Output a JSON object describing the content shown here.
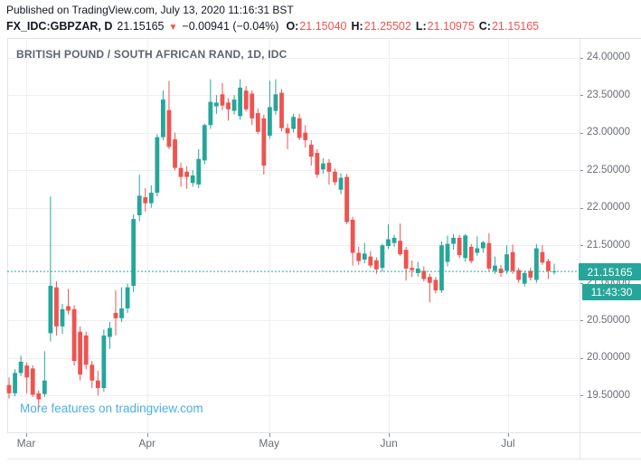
{
  "header": {
    "published": "Published on TradingView.com, July 13, 2020 11:16:31 BST",
    "symbol": "FX_IDC:GBPZAR, D",
    "last_price": "21.15165",
    "direction_icon": "▼",
    "change": "−0.00941 (−0.04%)",
    "ohlc": {
      "o_label": "O:",
      "o": "21.15040",
      "h_label": "H:",
      "h": "21.25502",
      "l_label": "L:",
      "l": "21.10975",
      "c_label": "C:",
      "c": "21.15165"
    }
  },
  "chart": {
    "title": "BRITISH POUND / SOUTH AFRICAN RAND, 1D, IDC",
    "watermark": "More features on tradingview.com",
    "price_label": "21.15165",
    "countdown": "11:43:30",
    "colors": {
      "up": "#26a69a",
      "down": "#ef5350",
      "accent": "#26a69a",
      "link": "#4bafe8",
      "value_red": "#ef5350",
      "text": "#131722",
      "axis_text": "#6a6d77",
      "tick": "#8a8e99",
      "grid": "#edeff5",
      "border": "#e0e3eb",
      "title_gray": "#5d6370",
      "badge_bg": "#26a69a"
    }
  },
  "chart_data": {
    "type": "candlestick",
    "title": "BRITISH POUND / SOUTH AFRICAN RAND, 1D, IDC",
    "symbol": "FX_IDC:GBPZAR",
    "interval": "1D",
    "current_price": 21.15165,
    "countdown": "11:43:30",
    "ylim": [
      19.01,
      24.26
    ],
    "grid": true,
    "price_gridlines": [
      24.0,
      23.5,
      23.0,
      22.5,
      22.0,
      21.5,
      21.0,
      20.5,
      20.0,
      19.5
    ],
    "ylabels": [
      "24.00000",
      "23.50000",
      "23.00000",
      "22.50000",
      "22.00000",
      "21.50000",
      "21.00000",
      "20.50000",
      "20.00000",
      "19.50000"
    ],
    "x_ticks": [
      {
        "label": "Mar",
        "index": 2.9
      },
      {
        "label": "Apr",
        "index": 23.3
      },
      {
        "label": "May",
        "index": 43.9
      },
      {
        "label": "Jun",
        "index": 64.1
      },
      {
        "label": "Jul",
        "index": 84.2
      }
    ],
    "candles_format": [
      "open",
      "high",
      "low",
      "close"
    ],
    "candles": [
      [
        19.64,
        19.74,
        19.46,
        19.53
      ],
      [
        19.53,
        19.85,
        19.49,
        19.8
      ],
      [
        19.8,
        20.03,
        19.76,
        19.95
      ],
      [
        19.9,
        19.94,
        19.53,
        19.74
      ],
      [
        19.86,
        19.9,
        19.48,
        19.51
      ],
      [
        19.53,
        19.57,
        19.33,
        19.45
      ],
      [
        19.52,
        20.09,
        19.48,
        19.7
      ],
      [
        20.33,
        22.15,
        20.22,
        20.96
      ],
      [
        20.94,
        21.02,
        20.3,
        20.42
      ],
      [
        20.42,
        20.72,
        20.32,
        20.65
      ],
      [
        20.69,
        20.92,
        20.58,
        20.63
      ],
      [
        20.65,
        20.7,
        19.9,
        19.96
      ],
      [
        20.35,
        20.42,
        19.7,
        19.78
      ],
      [
        20.3,
        20.35,
        19.85,
        19.91
      ],
      [
        19.91,
        19.96,
        19.6,
        19.7
      ],
      [
        19.7,
        19.83,
        19.5,
        19.6
      ],
      [
        19.6,
        20.38,
        19.55,
        20.3
      ],
      [
        20.28,
        20.48,
        20.12,
        20.4
      ],
      [
        20.6,
        20.9,
        20.3,
        20.53
      ],
      [
        20.53,
        20.94,
        20.48,
        20.66
      ],
      [
        20.66,
        20.99,
        20.6,
        20.94
      ],
      [
        20.96,
        21.91,
        20.88,
        21.85
      ],
      [
        21.9,
        22.44,
        21.82,
        22.16
      ],
      [
        22.14,
        22.26,
        21.95,
        22.06
      ],
      [
        22.06,
        22.3,
        22.0,
        22.2
      ],
      [
        22.2,
        22.98,
        22.15,
        22.94
      ],
      [
        22.94,
        23.56,
        22.9,
        23.44
      ],
      [
        23.3,
        23.69,
        22.78,
        22.81
      ],
      [
        22.91,
        23.0,
        22.5,
        22.53
      ],
      [
        22.53,
        22.6,
        22.28,
        22.41
      ],
      [
        22.48,
        22.55,
        22.25,
        22.41
      ],
      [
        22.33,
        22.5,
        22.28,
        22.43
      ],
      [
        22.31,
        22.78,
        22.26,
        22.65
      ],
      [
        22.63,
        23.12,
        22.58,
        23.1
      ],
      [
        23.1,
        23.71,
        23.05,
        23.41
      ],
      [
        23.35,
        23.5,
        23.25,
        23.4
      ],
      [
        23.51,
        23.66,
        23.3,
        23.36
      ],
      [
        23.4,
        23.46,
        23.16,
        23.31
      ],
      [
        23.29,
        23.5,
        23.24,
        23.44
      ],
      [
        23.22,
        23.71,
        23.17,
        23.6
      ],
      [
        23.56,
        23.62,
        23.28,
        23.31
      ],
      [
        23.52,
        23.56,
        23.1,
        23.19
      ],
      [
        23.26,
        23.32,
        22.98,
        23.01
      ],
      [
        23.19,
        23.24,
        22.44,
        22.56
      ],
      [
        22.96,
        23.69,
        22.92,
        23.34
      ],
      [
        23.29,
        23.71,
        23.24,
        23.51
      ],
      [
        23.53,
        23.58,
        23.02,
        23.06
      ],
      [
        23.06,
        23.12,
        22.78,
        22.99
      ],
      [
        23.05,
        23.25,
        23.0,
        23.21
      ],
      [
        23.19,
        23.25,
        22.9,
        22.93
      ],
      [
        23.0,
        23.1,
        22.8,
        22.9
      ],
      [
        22.84,
        22.9,
        22.56,
        22.68
      ],
      [
        22.73,
        22.78,
        22.4,
        22.44
      ],
      [
        22.51,
        22.66,
        22.45,
        22.59
      ],
      [
        22.6,
        22.65,
        22.31,
        22.48
      ],
      [
        22.48,
        22.52,
        22.3,
        22.34
      ],
      [
        22.24,
        22.46,
        22.18,
        22.4
      ],
      [
        22.41,
        22.45,
        21.78,
        21.81
      ],
      [
        21.84,
        21.88,
        21.23,
        21.4
      ],
      [
        21.4,
        21.48,
        21.24,
        21.29
      ],
      [
        21.31,
        21.53,
        21.26,
        21.39
      ],
      [
        21.35,
        21.42,
        21.2,
        21.23
      ],
      [
        21.3,
        21.34,
        21.12,
        21.18
      ],
      [
        21.2,
        21.52,
        21.15,
        21.5
      ],
      [
        21.49,
        21.78,
        21.45,
        21.58
      ],
      [
        21.53,
        21.64,
        21.48,
        21.6
      ],
      [
        21.56,
        21.79,
        21.36,
        21.38
      ],
      [
        21.44,
        21.48,
        21.03,
        21.19
      ],
      [
        21.2,
        21.3,
        21.08,
        21.17
      ],
      [
        21.13,
        21.28,
        21.08,
        21.19
      ],
      [
        21.16,
        21.22,
        21.02,
        21.05
      ],
      [
        21.08,
        21.12,
        20.74,
        21.0
      ],
      [
        21.04,
        21.08,
        20.86,
        20.9
      ],
      [
        20.9,
        21.55,
        20.87,
        21.5
      ],
      [
        21.28,
        21.63,
        21.22,
        21.52
      ],
      [
        21.52,
        21.65,
        21.44,
        21.6
      ],
      [
        21.6,
        21.64,
        21.33,
        21.37
      ],
      [
        21.33,
        21.65,
        21.28,
        21.63
      ],
      [
        21.48,
        21.52,
        21.26,
        21.29
      ],
      [
        21.4,
        21.62,
        21.36,
        21.46
      ],
      [
        21.46,
        21.56,
        21.4,
        21.54
      ],
      [
        21.53,
        21.66,
        21.16,
        21.19
      ],
      [
        21.16,
        21.35,
        21.12,
        21.23
      ],
      [
        21.19,
        21.24,
        21.08,
        21.13
      ],
      [
        21.16,
        21.5,
        21.12,
        21.38
      ],
      [
        21.41,
        21.51,
        21.12,
        21.16
      ],
      [
        21.17,
        21.2,
        21.0,
        21.04
      ],
      [
        20.99,
        21.16,
        20.95,
        21.13
      ],
      [
        21.16,
        21.2,
        21.03,
        21.07
      ],
      [
        21.04,
        21.52,
        21.0,
        21.46
      ],
      [
        21.41,
        21.5,
        21.24,
        21.27
      ],
      [
        21.29,
        21.32,
        21.05,
        21.16
      ],
      [
        21.1504,
        21.25502,
        21.10975,
        21.15165
      ]
    ]
  }
}
